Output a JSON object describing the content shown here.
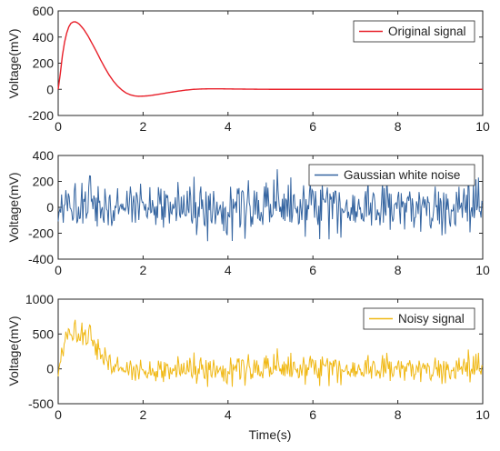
{
  "chart_data": [
    {
      "type": "line",
      "series": [
        {
          "name": "Original signal",
          "color": "#e8202a"
        }
      ],
      "ylabel": "Voltage(mV)",
      "xlim": [
        0,
        10
      ],
      "ylim": [
        -200,
        600
      ],
      "xticks": [
        0,
        2,
        4,
        6,
        8,
        10
      ],
      "yticks": [
        -200,
        0,
        200,
        400,
        600
      ],
      "x_tick_labels": [
        "0",
        "2",
        "4",
        "6",
        "8",
        "10"
      ],
      "y_tick_labels": [
        "-200",
        "0",
        "200",
        "400",
        "600"
      ],
      "legend": "top-right",
      "grid": false,
      "points": [
        [
          0,
          0
        ],
        [
          0.05,
          120
        ],
        [
          0.1,
          260
        ],
        [
          0.15,
          360
        ],
        [
          0.2,
          430
        ],
        [
          0.25,
          478
        ],
        [
          0.3,
          505
        ],
        [
          0.35,
          515
        ],
        [
          0.4,
          517
        ],
        [
          0.45,
          510
        ],
        [
          0.5,
          498
        ],
        [
          0.6,
          460
        ],
        [
          0.7,
          410
        ],
        [
          0.8,
          350
        ],
        [
          0.9,
          290
        ],
        [
          1.0,
          225
        ],
        [
          1.1,
          165
        ],
        [
          1.2,
          110
        ],
        [
          1.3,
          63
        ],
        [
          1.4,
          25
        ],
        [
          1.5,
          -5
        ],
        [
          1.6,
          -28
        ],
        [
          1.7,
          -42
        ],
        [
          1.8,
          -50
        ],
        [
          1.9,
          -53
        ],
        [
          2.0,
          -52
        ],
        [
          2.1,
          -50
        ],
        [
          2.2,
          -46
        ],
        [
          2.4,
          -36
        ],
        [
          2.6,
          -25
        ],
        [
          2.8,
          -15
        ],
        [
          3.0,
          -6
        ],
        [
          3.2,
          0
        ],
        [
          3.4,
          3
        ],
        [
          3.6,
          4
        ],
        [
          3.8,
          4
        ],
        [
          4.0,
          3
        ],
        [
          4.3,
          2
        ],
        [
          4.6,
          1
        ],
        [
          5.0,
          0
        ],
        [
          6.0,
          0
        ],
        [
          7.0,
          0
        ],
        [
          8.0,
          0
        ],
        [
          9.0,
          0
        ],
        [
          10.0,
          0
        ]
      ]
    },
    {
      "type": "line",
      "series": [
        {
          "name": "Gaussian white noise",
          "color": "#3464a0"
        }
      ],
      "ylabel": "Voltage(mV)",
      "xlim": [
        0,
        10
      ],
      "ylim": [
        -400,
        400
      ],
      "xticks": [
        0,
        2,
        4,
        6,
        8,
        10
      ],
      "yticks": [
        -400,
        -200,
        0,
        200,
        400
      ],
      "x_tick_labels": [
        "0",
        "2",
        "4",
        "6",
        "8",
        "10"
      ],
      "y_tick_labels": [
        "-400",
        "-200",
        "0",
        "200",
        "400"
      ],
      "legend": "top-right",
      "grid": false,
      "noise": {
        "x_start": 0,
        "x_end": 10,
        "step": 0.02,
        "std_mV": 100,
        "min_mV": -300,
        "max_mV": 360
      }
    },
    {
      "type": "line",
      "series": [
        {
          "name": "Noisy signal",
          "color": "#f0b814"
        }
      ],
      "ylabel": "Voltage(mV)",
      "xlabel": "Time(s)",
      "xlim": [
        0,
        10
      ],
      "ylim": [
        -500,
        1000
      ],
      "xticks": [
        0,
        2,
        4,
        6,
        8,
        10
      ],
      "yticks": [
        -500,
        0,
        500,
        1000
      ],
      "x_tick_labels": [
        "0",
        "2",
        "4",
        "6",
        "8",
        "10"
      ],
      "y_tick_labels": [
        "-500",
        "0",
        "500",
        "1000"
      ],
      "legend": "top-right",
      "grid": false,
      "composition": "Original signal + Gaussian white noise"
    }
  ]
}
